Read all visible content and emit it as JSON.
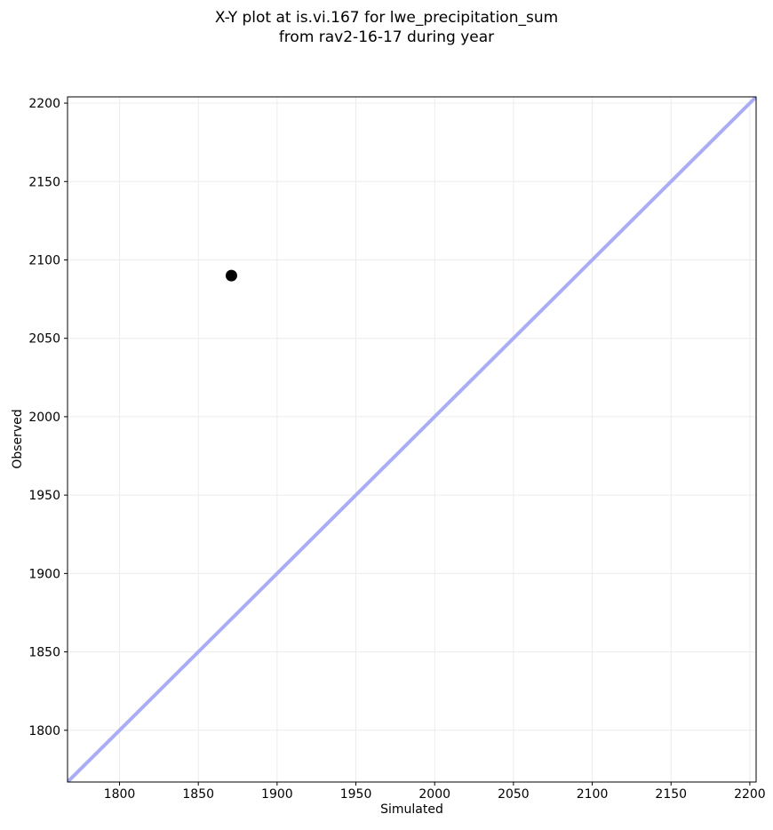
{
  "title": {
    "line1": "X-Y plot at is.vi.167 for lwe_precipitation_sum",
    "line2": "from rav2-16-17 during year"
  },
  "chart_data": {
    "type": "scatter",
    "title": "X-Y plot at is.vi.167 for lwe_precipitation_sum\nfrom rav2-16-17 during year",
    "xlabel": "Simulated",
    "ylabel": "Observed",
    "xlim": [
      1767,
      2204
    ],
    "ylim": [
      1767,
      2204
    ],
    "xticks": [
      1800,
      1850,
      1900,
      1950,
      2000,
      2050,
      2100,
      2150,
      2200
    ],
    "yticks": [
      1800,
      1850,
      1900,
      1950,
      2000,
      2050,
      2100,
      2150,
      2200
    ],
    "grid": true,
    "legend": "none",
    "series": [
      {
        "name": "observed-vs-simulated-points",
        "marker": "circle",
        "color": "#000000",
        "points": [
          {
            "x": 1871,
            "y": 2090
          }
        ]
      }
    ],
    "identity_line": {
      "name": "one-to-one-line",
      "x": [
        1767,
        2204
      ],
      "y": [
        1767,
        2204
      ],
      "color": "#a9adf5"
    },
    "colors": {
      "background": "#ffffff",
      "grid": "#ececec",
      "spine": "#000000",
      "tick": "#000000",
      "text": "#000000",
      "point": "#000000",
      "identity_line": "#a9adf5"
    }
  }
}
